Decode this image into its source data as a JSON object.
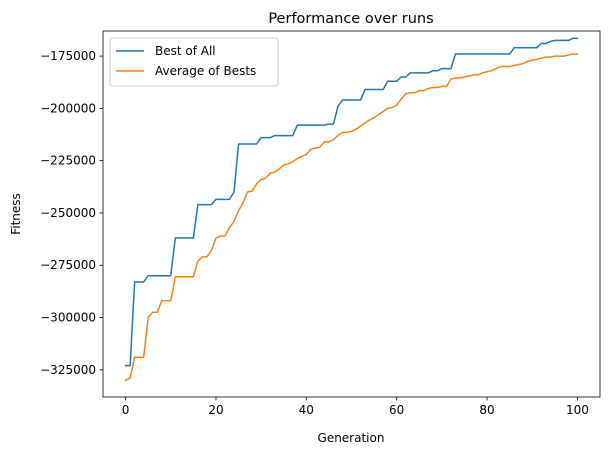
{
  "chart_data": {
    "type": "line",
    "title": "Performance over runs",
    "xlabel": "Generation",
    "ylabel": "Fitness",
    "xlim": [
      -5,
      105
    ],
    "ylim": [
      -338000,
      -163000
    ],
    "xticks": [
      0,
      20,
      40,
      60,
      80,
      100
    ],
    "yticks": [
      -325000,
      -300000,
      -275000,
      -250000,
      -225000,
      -200000,
      -175000
    ],
    "ytick_labels": [
      "−325000",
      "−300000",
      "−275000",
      "−250000",
      "−225000",
      "−200000",
      "−175000"
    ],
    "legend_position": "top-left",
    "grid": false,
    "series": [
      {
        "name": "Best of All",
        "color": "#1f77b4",
        "x": [
          0,
          1,
          2,
          3,
          4,
          5,
          6,
          7,
          8,
          9,
          10,
          11,
          12,
          13,
          14,
          15,
          16,
          17,
          18,
          19,
          20,
          21,
          22,
          23,
          24,
          25,
          26,
          27,
          28,
          29,
          30,
          31,
          32,
          33,
          34,
          35,
          36,
          37,
          38,
          39,
          40,
          41,
          42,
          43,
          44,
          45,
          46,
          47,
          48,
          49,
          50,
          51,
          52,
          53,
          54,
          55,
          56,
          57,
          58,
          59,
          60,
          61,
          62,
          63,
          64,
          65,
          66,
          67,
          68,
          69,
          70,
          71,
          72,
          73,
          74,
          75,
          76,
          77,
          78,
          79,
          80,
          81,
          82,
          83,
          84,
          85,
          86,
          87,
          88,
          89,
          90,
          91,
          92,
          93,
          94,
          95,
          96,
          97,
          98,
          99,
          100
        ],
        "y": [
          -323000,
          -323000,
          -283000,
          -283000,
          -283000,
          -280000,
          -280000,
          -280000,
          -280000,
          -280000,
          -280000,
          -262000,
          -262000,
          -262000,
          -262000,
          -262000,
          -246000,
          -246000,
          -246000,
          -246000,
          -243500,
          -243500,
          -243500,
          -243500,
          -240000,
          -217000,
          -217000,
          -217000,
          -217000,
          -217000,
          -214000,
          -214000,
          -214000,
          -213000,
          -213000,
          -213000,
          -213000,
          -213000,
          -208000,
          -208000,
          -208000,
          -208000,
          -208000,
          -208000,
          -208000,
          -207500,
          -207500,
          -199000,
          -196000,
          -196000,
          -196000,
          -196000,
          -196000,
          -191000,
          -191000,
          -191000,
          -191000,
          -191000,
          -187000,
          -187000,
          -187000,
          -185000,
          -185000,
          -183000,
          -183000,
          -183000,
          -183000,
          -183000,
          -182000,
          -182000,
          -181000,
          -181000,
          -181000,
          -174000,
          -174000,
          -174000,
          -174000,
          -174000,
          -174000,
          -174000,
          -174000,
          -174000,
          -174000,
          -174000,
          -174000,
          -174000,
          -171000,
          -171000,
          -171000,
          -171000,
          -171000,
          -171000,
          -169000,
          -169000,
          -168000,
          -167500,
          -167500,
          -167500,
          -167500,
          -166500,
          -166500
        ]
      },
      {
        "name": "Average of Bests",
        "color": "#ff7f0e",
        "x": [
          0,
          1,
          2,
          3,
          4,
          5,
          6,
          7,
          8,
          9,
          10,
          11,
          12,
          13,
          14,
          15,
          16,
          17,
          18,
          19,
          20,
          21,
          22,
          23,
          24,
          25,
          26,
          27,
          28,
          29,
          30,
          31,
          32,
          33,
          34,
          35,
          36,
          37,
          38,
          39,
          40,
          41,
          42,
          43,
          44,
          45,
          46,
          47,
          48,
          49,
          50,
          51,
          52,
          53,
          54,
          55,
          56,
          57,
          58,
          59,
          60,
          61,
          62,
          63,
          64,
          65,
          66,
          67,
          68,
          69,
          70,
          71,
          72,
          73,
          74,
          75,
          76,
          77,
          78,
          79,
          80,
          81,
          82,
          83,
          84,
          85,
          86,
          87,
          88,
          89,
          90,
          91,
          92,
          93,
          94,
          95,
          96,
          97,
          98,
          99,
          100
        ],
        "y": [
          -330000,
          -329000,
          -319000,
          -319000,
          -319000,
          -300000,
          -297500,
          -297500,
          -292000,
          -292000,
          -292000,
          -280500,
          -280500,
          -280500,
          -280500,
          -280500,
          -273000,
          -271000,
          -271000,
          -268000,
          -262000,
          -261000,
          -261000,
          -257000,
          -254000,
          -249000,
          -245000,
          -240000,
          -239500,
          -236000,
          -234000,
          -233500,
          -231000,
          -230500,
          -229000,
          -227000,
          -226500,
          -225500,
          -224000,
          -223000,
          -222000,
          -219500,
          -219000,
          -218500,
          -216000,
          -216000,
          -215000,
          -213000,
          -211500,
          -211500,
          -211000,
          -210000,
          -208500,
          -207000,
          -205500,
          -204500,
          -203000,
          -201500,
          -200000,
          -199500,
          -198500,
          -195500,
          -193000,
          -192500,
          -192500,
          -191500,
          -191500,
          -190500,
          -190000,
          -190000,
          -189500,
          -189500,
          -186000,
          -185500,
          -185500,
          -185000,
          -184500,
          -184000,
          -184000,
          -183000,
          -182500,
          -182000,
          -181000,
          -180000,
          -180000,
          -180000,
          -179500,
          -179000,
          -178500,
          -177500,
          -177000,
          -176500,
          -176000,
          -175500,
          -175500,
          -175000,
          -175000,
          -175000,
          -174500,
          -174000,
          -174000
        ]
      }
    ]
  }
}
